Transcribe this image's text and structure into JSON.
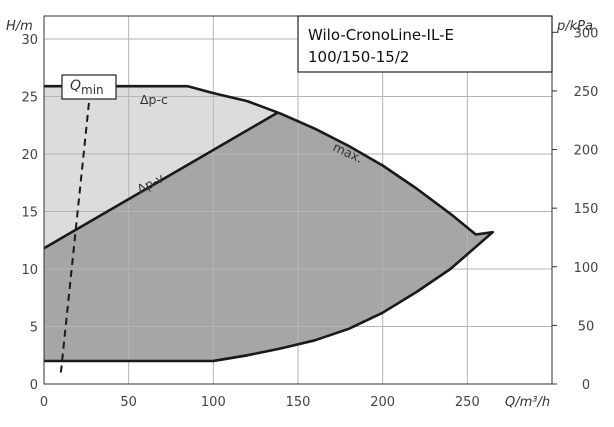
{
  "chart_data": {
    "type": "area",
    "title_line1": "Wilo-CronoLine-IL-E",
    "title_line2": "100/150-15/2",
    "xlabel": "Q/m³/h",
    "ylabel_left": "H/m",
    "ylabel_right": "p/kPa",
    "xlim": [
      0,
      300
    ],
    "ylim": [
      0,
      32
    ],
    "right_axis_kpa_per_m": 9.81,
    "xticks": [
      0,
      50,
      100,
      150,
      200,
      250
    ],
    "yticks": [
      0,
      5,
      10,
      15,
      20,
      25,
      30
    ],
    "yticks_right": [
      0,
      50,
      100,
      150,
      200,
      250,
      300
    ],
    "grid": true,
    "max_curve": {
      "label": "max.",
      "x": [
        85,
        100,
        120,
        140,
        160,
        180,
        200,
        220,
        240,
        255,
        265,
        240,
        220,
        200,
        180,
        160,
        140,
        120,
        100
      ],
      "y": [
        25.9,
        25.3,
        24.6,
        23.5,
        22.2,
        20.7,
        19.0,
        17.0,
        14.8,
        13.0,
        13.2,
        10.0,
        8.0,
        6.2,
        4.8,
        3.8,
        3.1,
        2.5,
        2.0
      ]
    },
    "dp_c_curve": {
      "label": "Δp-c",
      "x": [
        0,
        85
      ],
      "y": [
        25.9,
        25.9
      ]
    },
    "dp_v_curve": {
      "label": "Δp-v",
      "x": [
        0,
        138
      ],
      "y": [
        11.8,
        23.6
      ]
    },
    "min_curve": {
      "x": [
        0,
        100,
        120
      ],
      "y": [
        2.0,
        2.0,
        2.5
      ]
    },
    "qmin": {
      "label_main": "Q",
      "label_sub": "min",
      "x": [
        10,
        28
      ],
      "y": [
        1.0,
        26.5
      ]
    },
    "colors": {
      "light_region": "#dcdcdc",
      "dark_region": "#a6a6a6",
      "curve": "#1a1a1a",
      "grid": "#b5b5b5"
    }
  }
}
